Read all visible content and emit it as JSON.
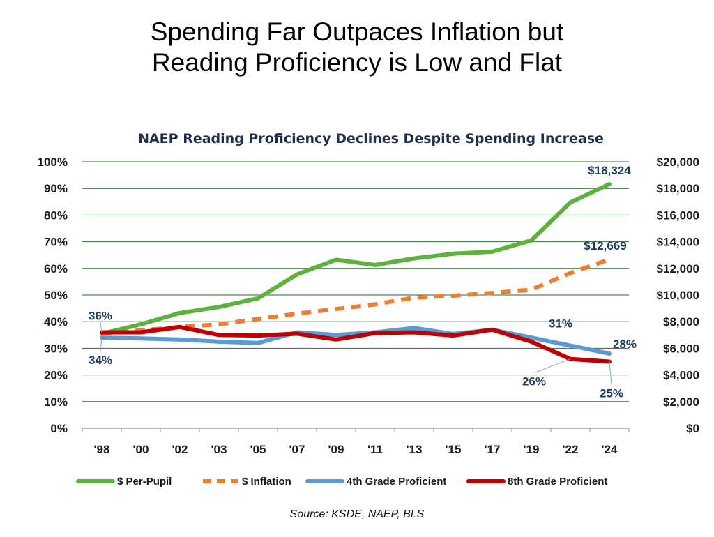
{
  "slide_title": {
    "line1": "Spending Far Outpaces Inflation but",
    "line2": "Reading Proficiency is Low and Flat"
  },
  "source": "Source: KSDE, NAEP, BLS",
  "chart_data": {
    "type": "line",
    "title": "NAEP Reading Proficiency Declines Despite Spending Increase",
    "categories": [
      "'98",
      "'00",
      "'02",
      "'03",
      "'05",
      "'07",
      "'09",
      "'11",
      "'13",
      "'15",
      "'17",
      "'19",
      "'22",
      "'24"
    ],
    "y_left": {
      "min": 0,
      "max": 100,
      "step": 10,
      "ticks": [
        "0%",
        "10%",
        "20%",
        "30%",
        "40%",
        "50%",
        "60%",
        "70%",
        "80%",
        "90%",
        "100%"
      ]
    },
    "y_right": {
      "min": 0,
      "max": 20000,
      "step": 2000,
      "ticks": [
        "$0",
        "$2,000",
        "$4,000",
        "$6,000",
        "$8,000",
        "$10,000",
        "$12,000",
        "$14,000",
        "$16,000",
        "$18,000",
        "$20,000"
      ]
    },
    "grid": true,
    "legend_position": "bottom",
    "series": [
      {
        "name": "$ Per-Pupil",
        "axis": "right",
        "color": "#5fb13d",
        "dash": false,
        "values": [
          7100,
          7800,
          8650,
          9100,
          9750,
          11550,
          12650,
          12250,
          12750,
          13100,
          13250,
          14100,
          16950,
          18324
        ]
      },
      {
        "name": "$ Inflation",
        "axis": "right",
        "color": "#ed7d31",
        "dash": true,
        "values": [
          7100,
          7350,
          7600,
          7800,
          8200,
          8600,
          8950,
          9300,
          9800,
          9950,
          10150,
          10400,
          11650,
          12669
        ]
      },
      {
        "name": "4th Grade Proficient",
        "axis": "left",
        "color": "#5b9bd5",
        "dash": false,
        "values": [
          34,
          33.7,
          33.3,
          32.5,
          32,
          36,
          35,
          36,
          37.6,
          35.4,
          37,
          34,
          31,
          28
        ]
      },
      {
        "name": "8th Grade Proficient",
        "axis": "left",
        "color": "#c00000",
        "dash": false,
        "values": [
          36,
          36,
          38,
          35,
          34.8,
          35.5,
          33.3,
          35.7,
          36,
          34.8,
          37,
          32.5,
          26,
          25
        ]
      }
    ],
    "annotations": [
      {
        "text": "$18,324",
        "series": 0,
        "index": 13
      },
      {
        "text": "$12,669",
        "series": 1,
        "index": 13
      },
      {
        "text": "36%",
        "series": 3,
        "index": 0
      },
      {
        "text": "34%",
        "series": 2,
        "index": 0
      },
      {
        "text": "31%",
        "series": 2,
        "index": 12
      },
      {
        "text": "28%",
        "series": 2,
        "index": 13
      },
      {
        "text": "26%",
        "series": 3,
        "index": 12
      },
      {
        "text": "25%",
        "series": 3,
        "index": 13
      }
    ]
  }
}
